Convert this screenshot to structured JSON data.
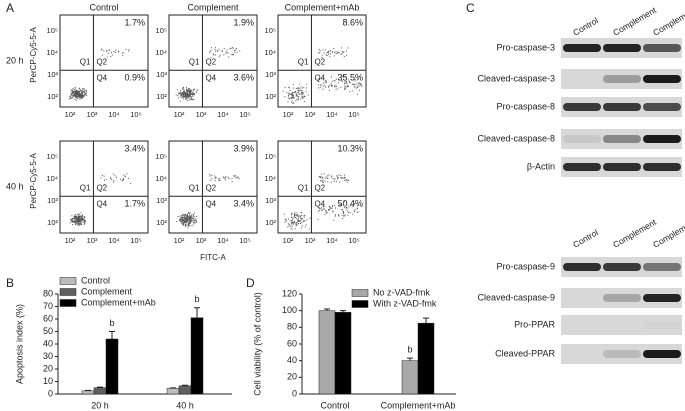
{
  "panel_labels": [
    "A",
    "B",
    "C",
    "D"
  ],
  "flow": {
    "columns": [
      "Control",
      "Complement",
      "Complement+mAb"
    ],
    "rows": [
      "20 h",
      "40 h"
    ],
    "y_label": "PerCP-Cy5-5-A",
    "x_label": "FITC-A",
    "tick_labels": [
      "10²",
      "10³",
      "10⁴",
      "10⁵"
    ],
    "quadrants": [
      "Q1",
      "Q2",
      "Q4"
    ],
    "plots": [
      [
        {
          "q2": "1.7%",
          "q4": "0.9%"
        },
        {
          "q2": "1.9%",
          "q4": "3.6%"
        },
        {
          "q2": "8.6%",
          "q4": "35.5%"
        }
      ],
      [
        {
          "q2": "3.4%",
          "q4": "1.7%"
        },
        {
          "q2": "3.9%",
          "q4": "3.4%"
        },
        {
          "q2": "10.3%",
          "q4": "50.4%"
        }
      ]
    ]
  },
  "chart_data": [
    {
      "type": "bar",
      "y_label": "Apoptosis index (%)",
      "categories": [
        "20 h",
        "40 h"
      ],
      "series": [
        {
          "name": "Control",
          "color": "#bdbdbd",
          "values": [
            2.5,
            4.5
          ],
          "errors": [
            0.4,
            0.4
          ]
        },
        {
          "name": "Complement",
          "color": "#606060",
          "values": [
            5,
            6.5
          ],
          "errors": [
            0.5,
            0.5
          ]
        },
        {
          "name": "Complement+mAb",
          "color": "#000000",
          "values": [
            44,
            61
          ],
          "errors": [
            6,
            8
          ],
          "annotations": [
            "b",
            "b"
          ]
        }
      ],
      "ylim": [
        0,
        80
      ],
      "yticks": [
        0,
        10,
        20,
        30,
        40,
        50,
        60,
        70,
        80
      ]
    },
    {
      "type": "bar",
      "y_label": "Cell viability (% of control)",
      "categories": [
        "Control",
        "Complement+mAb"
      ],
      "series": [
        {
          "name": "No z-VAD-fmk",
          "color": "#a8a8a8",
          "values": [
            100,
            40
          ],
          "errors": [
            2,
            3
          ],
          "annotations": [
            null,
            "b"
          ]
        },
        {
          "name": "With z-VAD-fmk",
          "color": "#000000",
          "values": [
            98,
            85
          ],
          "errors": [
            2,
            6
          ]
        }
      ],
      "ylim": [
        0,
        120
      ],
      "yticks": [
        0,
        20,
        40,
        60,
        80,
        100,
        120
      ]
    }
  ],
  "blots": [
    {
      "lanes": [
        "Control",
        "Complement",
        "Complement +mAb"
      ],
      "rows": [
        "Pro-caspase-3",
        "Cleaved-caspase-3",
        "Pro-caspase-8",
        "Cleaved-caspase-8",
        "β-Actin"
      ]
    },
    {
      "lanes": [
        "Control",
        "Complement",
        "Complement +mAb"
      ],
      "rows": [
        "Pro-caspase-9",
        "Cleaved-caspase-9",
        "Pro-PPAR",
        "Cleaved-PPAR"
      ]
    }
  ]
}
